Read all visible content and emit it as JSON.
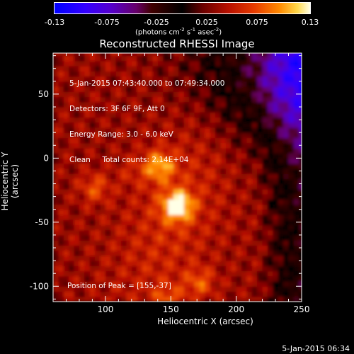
{
  "colorbar": {
    "ticks": [
      "-0.13",
      "-0.075",
      "-0.025",
      "0.025",
      "0.075",
      "0.13"
    ],
    "unit_parts": [
      "(photons cm",
      "-2",
      " s",
      "-1",
      " asec",
      "-2",
      ")"
    ]
  },
  "info": {
    "time_range": "5-Jan-2015 07:43:40.000 to 07:49:34.000",
    "detectors": "Detectors: 3F 6F 9F, Att 0",
    "energy": "Energy Range: 3.0 - 6.0 keV",
    "clean": "Clean     Total counts: 2.14E+04",
    "peak": "Position of Peak = [155,-37]"
  },
  "footer_date": "5-Jan-2015 06:34",
  "chart_data": {
    "type": "heatmap",
    "title": "Reconstructed RHESSI Image",
    "xlabel": "Heliocentric X (arcsec)",
    "ylabel": "Heliocentric Y (arcsec)",
    "xlim": [
      60,
      250
    ],
    "ylim": [
      -112,
      82
    ],
    "xticks": [
      100,
      150,
      200,
      250
    ],
    "yticks": [
      -100,
      -50,
      0,
      50
    ],
    "colorbar_range": [
      -0.13,
      0.13
    ],
    "peak": [
      155,
      -37
    ],
    "sources": [
      {
        "x": 155,
        "y": -37,
        "value": 0.13
      },
      {
        "x": 141,
        "y": -6,
        "value": 0.1
      },
      {
        "x": 92,
        "y": -23,
        "value": 0.075
      },
      {
        "x": 172,
        "y": -97,
        "value": 0.075
      },
      {
        "x": 148,
        "y": -110,
        "value": 0.07
      },
      {
        "x": 120,
        "y": -10,
        "value": 0.05
      }
    ]
  }
}
